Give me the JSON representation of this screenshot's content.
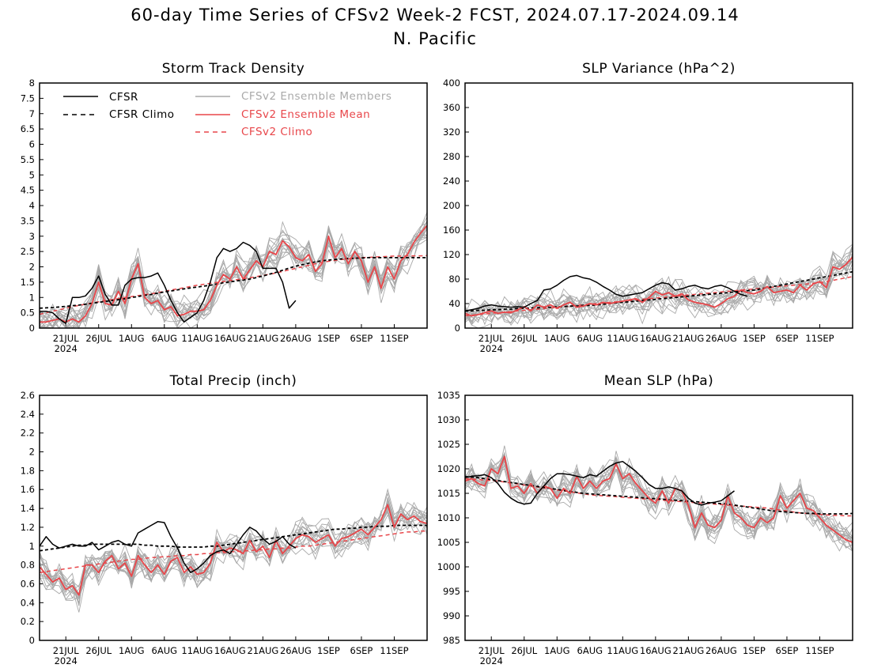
{
  "title_line1": "60-day Time Series of CFSv2 Week-2 FCST, 2024.07.17-2024.09.14",
  "title_line2": "N. Pacific",
  "colors": {
    "cfsr": "#000000",
    "ensemble_mean": "#e8464a",
    "members": "#a9a9a9",
    "frame": "#000000"
  },
  "legend": {
    "cfsr": "CFSR",
    "cfsr_climo": "CFSR Climo",
    "members": "CFSv2 Ensemble Members",
    "ens_mean": "CFSv2 Ensemble Mean",
    "cfsv2_climo": "CFSv2 Climo"
  },
  "x_ticks": [
    "21JUL",
    "26JUL",
    "1AUG",
    "6AUG",
    "11AUG",
    "16AUG",
    "21AUG",
    "26AUG",
    "1SEP",
    "6SEP",
    "11SEP"
  ],
  "x_year": "2024",
  "chart_data": [
    {
      "type": "line",
      "title": "Storm Track Density",
      "ylim": [
        0,
        8
      ],
      "yticks": [
        "0",
        "0.5",
        "1",
        "1.5",
        "2",
        "2.5",
        "3",
        "3.5",
        "4",
        "4.5",
        "5",
        "5.5",
        "6",
        "6.5",
        "7",
        "7.5",
        "8"
      ],
      "series": [
        {
          "name": "CFSR",
          "values": [
            0.55,
            0.55,
            0.5,
            0.3,
            0.15,
            1.0,
            1.0,
            1.05,
            1.3,
            1.7,
            1.1,
            0.75,
            0.75,
            1.4,
            1.6,
            1.65,
            1.65,
            1.7,
            1.8,
            1.4,
            0.9,
            0.5,
            0.2,
            0.35,
            0.5,
            0.9,
            1.5,
            2.3,
            2.6,
            2.5,
            2.6,
            2.8,
            2.7,
            2.5,
            1.95,
            1.95,
            1.95,
            1.5,
            0.65,
            0.9
          ]
        },
        {
          "name": "CFSR Climo",
          "values": [
            0.65,
            0.66,
            0.67,
            0.69,
            0.71,
            0.73,
            0.75,
            0.78,
            0.81,
            0.84,
            0.87,
            0.9,
            0.93,
            0.96,
            1.0,
            1.03,
            1.07,
            1.1,
            1.14,
            1.18,
            1.21,
            1.25,
            1.28,
            1.31,
            1.34,
            1.37,
            1.4,
            1.44,
            1.48,
            1.51,
            1.54,
            1.57,
            1.6,
            1.65,
            1.7,
            1.76,
            1.82,
            1.89,
            1.96,
            2.02,
            2.07,
            2.12,
            2.16,
            2.2,
            2.22,
            2.24,
            2.26,
            2.27,
            2.28,
            2.29,
            2.3,
            2.3,
            2.3,
            2.3,
            2.3,
            2.3,
            2.3,
            2.3,
            2.3,
            2.3
          ]
        },
        {
          "name": "CFSv2 Ensemble Mean",
          "values": [
            0.2,
            0.2,
            0.25,
            0.3,
            0.2,
            0.3,
            0.2,
            0.4,
            0.8,
            1.5,
            0.8,
            0.75,
            1.2,
            0.8,
            1.6,
            2.1,
            1.0,
            0.8,
            0.9,
            0.6,
            0.7,
            0.4,
            0.45,
            0.55,
            0.55,
            0.6,
            0.9,
            1.4,
            1.75,
            1.6,
            2.0,
            1.6,
            1.9,
            2.2,
            2.0,
            2.5,
            2.4,
            2.85,
            2.65,
            2.3,
            2.2,
            2.4,
            1.85,
            2.1,
            3.0,
            2.3,
            2.6,
            2.1,
            2.5,
            2.2,
            1.5,
            2.0,
            1.3,
            2.0,
            1.6,
            2.2,
            2.4,
            2.8,
            3.1,
            3.35
          ]
        },
        {
          "name": "CFSv2 Climo",
          "values": [
            0.45,
            0.5,
            0.55,
            0.6,
            0.65,
            0.7,
            0.74,
            0.78,
            0.82,
            0.86,
            0.9,
            0.93,
            0.96,
            1.0,
            1.03,
            1.06,
            1.09,
            1.12,
            1.16,
            1.2,
            1.24,
            1.28,
            1.32,
            1.36,
            1.4,
            1.43,
            1.46,
            1.49,
            1.52,
            1.55,
            1.58,
            1.61,
            1.64,
            1.68,
            1.72,
            1.76,
            1.8,
            1.85,
            1.9,
            1.95,
            2.0,
            2.05,
            2.1,
            2.14,
            2.18,
            2.21,
            2.24,
            2.26,
            2.28,
            2.3,
            2.31,
            2.32,
            2.33,
            2.34,
            2.35,
            2.35,
            2.36,
            2.36,
            2.36,
            2.37
          ]
        }
      ]
    },
    {
      "type": "line",
      "title": "SLP Variance (hPa^2)",
      "ylim": [
        0,
        400
      ],
      "yticks": [
        "0",
        "40",
        "80",
        "120",
        "160",
        "200",
        "240",
        "280",
        "320",
        "360",
        "400"
      ],
      "series": [
        {
          "name": "CFSR",
          "values": [
            28,
            30,
            32,
            36,
            38,
            36,
            35,
            34,
            35,
            34,
            40,
            45,
            62,
            64,
            70,
            78,
            84,
            86,
            82,
            80,
            75,
            68,
            62,
            55,
            52,
            54,
            56,
            58,
            64,
            70,
            74,
            72,
            62,
            64,
            68,
            70,
            66,
            64,
            68,
            70,
            66,
            60,
            55,
            52
          ]
        },
        {
          "name": "CFSR Climo",
          "values": [
            28,
            28,
            29,
            29,
            30,
            30,
            31,
            31,
            32,
            32,
            33,
            33,
            34,
            34,
            35,
            35,
            36,
            36,
            37,
            37,
            38,
            39,
            40,
            41,
            42,
            43,
            44,
            45,
            46,
            47,
            48,
            49,
            50,
            51,
            52,
            53,
            54,
            55,
            56,
            57,
            58,
            59,
            60,
            61,
            62,
            64,
            66,
            68,
            70,
            72,
            74,
            76,
            78,
            80,
            82,
            84,
            86,
            88,
            90,
            92
          ]
        },
        {
          "name": "CFSv2 Ensemble Mean",
          "values": [
            24,
            20,
            22,
            25,
            28,
            24,
            26,
            25,
            30,
            35,
            28,
            38,
            34,
            38,
            32,
            38,
            42,
            34,
            36,
            40,
            38,
            42,
            40,
            42,
            44,
            46,
            48,
            42,
            50,
            60,
            54,
            58,
            52,
            56,
            46,
            42,
            40,
            38,
            34,
            40,
            48,
            52,
            62,
            58,
            56,
            60,
            68,
            58,
            60,
            62,
            58,
            70,
            62,
            72,
            76,
            66,
            100,
            96,
            104,
            116
          ]
        },
        {
          "name": "CFSv2 Climo",
          "values": [
            20,
            21,
            22,
            23,
            24,
            25,
            26,
            27,
            28,
            29,
            30,
            31,
            32,
            33,
            34,
            35,
            36,
            37,
            38,
            39,
            40,
            41,
            42,
            43,
            44,
            45,
            46,
            47,
            48,
            49,
            50,
            51,
            52,
            53,
            54,
            55,
            56,
            57,
            58,
            59,
            60,
            61,
            62,
            63,
            64,
            65,
            66,
            67,
            68,
            69,
            70,
            71,
            72,
            73,
            74,
            76,
            78,
            80,
            82,
            84
          ]
        }
      ]
    },
    {
      "type": "line",
      "title": "Total Precip (inch)",
      "ylim": [
        0,
        2.6
      ],
      "yticks": [
        "0",
        "0.2",
        "0.4",
        "0.6",
        "0.8",
        "1",
        "1.2",
        "1.4",
        "1.6",
        "1.8",
        "2",
        "2.2",
        "2.4",
        "2.6"
      ],
      "series": [
        {
          "name": "CFSR",
          "values": [
            1.0,
            1.1,
            1.02,
            0.98,
            1.0,
            1.02,
            1.0,
            1.0,
            1.04,
            0.96,
            1.0,
            1.04,
            1.06,
            1.02,
            1.0,
            1.14,
            1.18,
            1.22,
            1.26,
            1.25,
            1.1,
            0.98,
            0.82,
            0.72,
            0.76,
            0.82,
            0.9,
            0.94,
            0.96,
            0.92,
            1.02,
            1.12,
            1.2,
            1.16,
            1.08,
            1.02,
            1.05,
            1.1,
            1.02,
            0.98
          ]
        },
        {
          "name": "CFSR Climo",
          "values": [
            0.95,
            0.96,
            0.97,
            0.98,
            0.99,
            1.0,
            1.01,
            1.01,
            1.02,
            1.02,
            1.02,
            1.02,
            1.02,
            1.02,
            1.02,
            1.02,
            1.01,
            1.01,
            1.0,
            1.0,
            1.0,
            0.99,
            0.99,
            0.99,
            0.99,
            0.99,
            1.0,
            1.0,
            1.01,
            1.02,
            1.03,
            1.04,
            1.05,
            1.06,
            1.07,
            1.08,
            1.09,
            1.1,
            1.11,
            1.12,
            1.13,
            1.14,
            1.15,
            1.16,
            1.17,
            1.18,
            1.18,
            1.19,
            1.19,
            1.2,
            1.2,
            1.21,
            1.21,
            1.21,
            1.22,
            1.22,
            1.22,
            1.22,
            1.22,
            1.22
          ]
        },
        {
          "name": "CFSv2 Ensemble Mean",
          "values": [
            0.78,
            0.7,
            0.62,
            0.66,
            0.54,
            0.58,
            0.48,
            0.8,
            0.8,
            0.72,
            0.84,
            0.9,
            0.76,
            0.82,
            0.68,
            0.9,
            0.8,
            0.72,
            0.8,
            0.7,
            0.84,
            0.88,
            0.72,
            0.78,
            0.7,
            0.72,
            0.82,
            1.04,
            0.94,
            0.98,
            0.96,
            0.92,
            1.06,
            0.94,
            1.0,
            0.88,
            1.06,
            0.92,
            1.0,
            1.08,
            1.12,
            1.1,
            1.04,
            1.08,
            1.12,
            1.0,
            1.08,
            1.1,
            1.14,
            1.18,
            1.12,
            1.2,
            1.28,
            1.44,
            1.2,
            1.34,
            1.28,
            1.32,
            1.26,
            1.24
          ]
        },
        {
          "name": "CFSv2 Climo",
          "values": [
            0.72,
            0.73,
            0.74,
            0.75,
            0.76,
            0.77,
            0.78,
            0.79,
            0.8,
            0.81,
            0.82,
            0.83,
            0.84,
            0.85,
            0.86,
            0.86,
            0.87,
            0.88,
            0.88,
            0.89,
            0.89,
            0.9,
            0.9,
            0.91,
            0.91,
            0.92,
            0.92,
            0.93,
            0.93,
            0.94,
            0.94,
            0.95,
            0.95,
            0.96,
            0.96,
            0.97,
            0.97,
            0.98,
            0.98,
            0.99,
            1.0,
            1.0,
            1.01,
            1.02,
            1.03,
            1.04,
            1.05,
            1.06,
            1.07,
            1.08,
            1.09,
            1.1,
            1.11,
            1.12,
            1.13,
            1.14,
            1.15,
            1.15,
            1.16,
            1.16
          ]
        }
      ]
    },
    {
      "type": "line",
      "title": "Mean SLP (hPa)",
      "ylim": [
        985,
        1035
      ],
      "yticks": [
        "985",
        "990",
        "995",
        "1000",
        "1005",
        "1010",
        "1015",
        "1020",
        "1025",
        "1030",
        "1035"
      ],
      "series": [
        {
          "name": "CFSR",
          "values": [
            1018.2,
            1018.5,
            1018.6,
            1018.8,
            1018.2,
            1017.0,
            1015.2,
            1014.0,
            1013.2,
            1012.8,
            1013.0,
            1015.0,
            1016.5,
            1018.0,
            1019.0,
            1019.0,
            1018.8,
            1018.5,
            1018.2,
            1018.8,
            1018.5,
            1019.5,
            1020.5,
            1021.2,
            1021.5,
            1020.5,
            1019.5,
            1018.2,
            1016.8,
            1016.0,
            1016.0,
            1016.3,
            1016.0,
            1015.5,
            1014.0,
            1013.0,
            1012.6,
            1013.0,
            1013.2,
            1013.5,
            1014.5,
            1015.5
          ]
        },
        {
          "name": "CFSR Climo",
          "values": [
            1018.4,
            1018.3,
            1018.2,
            1018.0,
            1017.8,
            1017.6,
            1017.4,
            1017.2,
            1017.0,
            1016.8,
            1016.6,
            1016.4,
            1016.2,
            1016.0,
            1015.8,
            1015.6,
            1015.4,
            1015.2,
            1015.0,
            1014.9,
            1014.8,
            1014.7,
            1014.6,
            1014.5,
            1014.4,
            1014.3,
            1014.2,
            1014.1,
            1014.0,
            1013.9,
            1013.8,
            1013.7,
            1013.6,
            1013.5,
            1013.4,
            1013.3,
            1013.2,
            1013.1,
            1013.0,
            1012.9,
            1012.8,
            1012.6,
            1012.4,
            1012.2,
            1012.0,
            1011.8,
            1011.6,
            1011.4,
            1011.3,
            1011.2,
            1011.1,
            1011.0,
            1010.9,
            1010.9,
            1010.8,
            1010.8,
            1010.8,
            1010.8,
            1010.8,
            1010.9
          ]
        },
        {
          "name": "CFSv2 Ensemble Mean",
          "values": [
            1017.5,
            1018.0,
            1017.0,
            1016.5,
            1020.0,
            1019.0,
            1022.5,
            1016.0,
            1016.5,
            1015.0,
            1017.0,
            1015.0,
            1016.5,
            1016.0,
            1014.0,
            1016.0,
            1015.0,
            1018.5,
            1016.0,
            1017.5,
            1016.0,
            1017.5,
            1018.0,
            1021.0,
            1018.0,
            1019.0,
            1017.0,
            1015.5,
            1014.0,
            1013.0,
            1015.5,
            1013.0,
            1016.0,
            1015.5,
            1012.5,
            1008.0,
            1011.0,
            1008.5,
            1008.0,
            1009.5,
            1014.5,
            1011.0,
            1010.0,
            1008.5,
            1008.0,
            1010.0,
            1009.0,
            1010.0,
            1014.5,
            1012.0,
            1013.5,
            1015.0,
            1012.0,
            1011.5,
            1010.0,
            1008.5,
            1007.5,
            1006.5,
            1005.5,
            1005.0
          ]
        },
        {
          "name": "CFSv2 Climo",
          "values": [
            1018.0,
            1017.9,
            1017.8,
            1017.7,
            1017.6,
            1017.5,
            1017.3,
            1017.1,
            1016.9,
            1016.7,
            1016.5,
            1016.3,
            1016.1,
            1015.9,
            1015.7,
            1015.5,
            1015.3,
            1015.1,
            1014.9,
            1014.7,
            1014.6,
            1014.5,
            1014.4,
            1014.3,
            1014.2,
            1014.1,
            1014.0,
            1013.9,
            1013.8,
            1013.7,
            1013.6,
            1013.5,
            1013.4,
            1013.3,
            1013.2,
            1013.1,
            1013.0,
            1012.9,
            1012.8,
            1012.7,
            1012.6,
            1012.5,
            1012.4,
            1012.3,
            1012.2,
            1012.1,
            1012.0,
            1011.8,
            1011.6,
            1011.4,
            1011.2,
            1011.0,
            1010.9,
            1010.8,
            1010.7,
            1010.6,
            1010.5,
            1010.5,
            1010.4,
            1010.4
          ]
        }
      ]
    }
  ]
}
